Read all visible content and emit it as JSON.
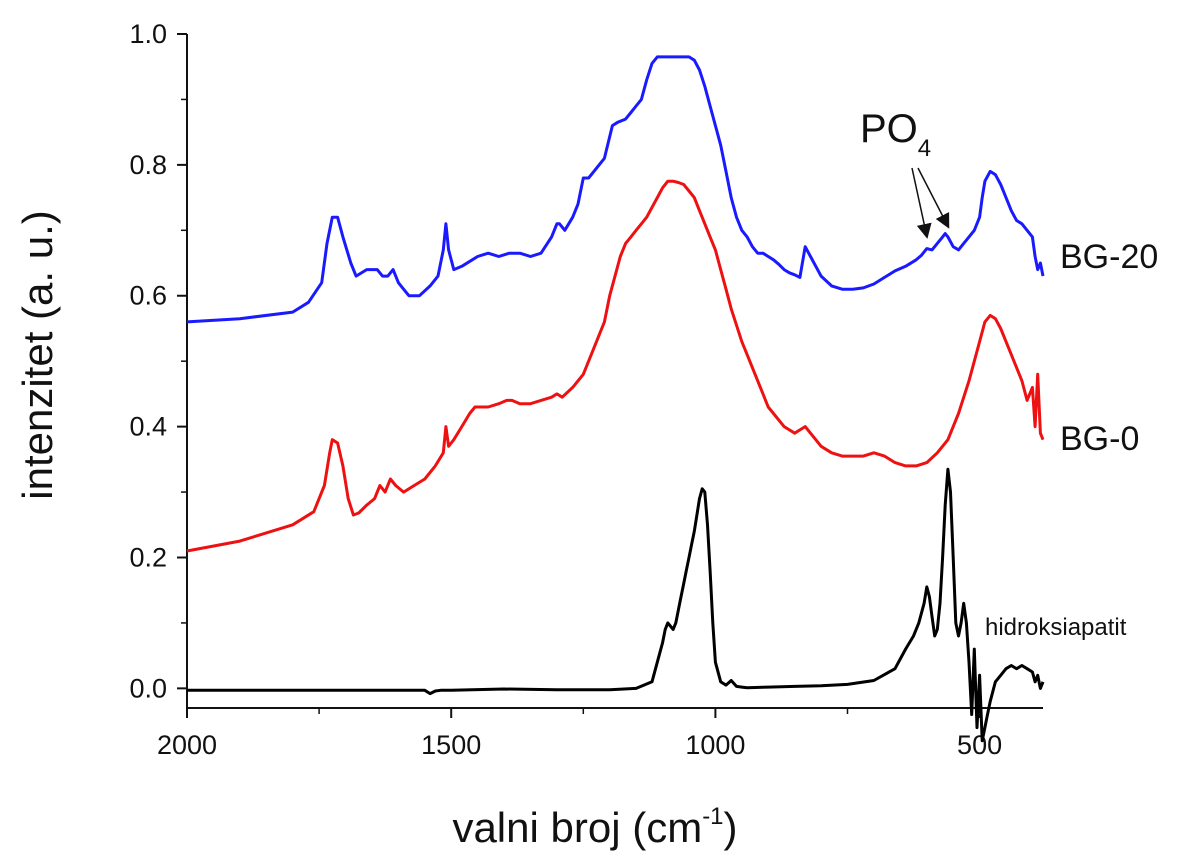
{
  "chart_data": {
    "type": "line",
    "xlabel": "valni broj (cm",
    "xlabel_sup": "-1",
    "xlabel_close": ")",
    "ylabel": "intenzitet (a. u.)",
    "xlim": [
      2000,
      380
    ],
    "ylim": [
      -0.03,
      1.0
    ],
    "x_ticks": [
      2000,
      1500,
      1000,
      500
    ],
    "x_tick_labels": [
      "2000",
      "1500",
      "1000",
      "500"
    ],
    "y_ticks": [
      0.0,
      0.2,
      0.4,
      0.6,
      0.8,
      1.0
    ],
    "y_tick_labels": [
      "0.0",
      "0.2",
      "0.4",
      "0.6",
      "0.8",
      "1.0"
    ],
    "annotation": {
      "text": "PO",
      "sub": "4",
      "arrows_to_x": [
        600,
        560
      ],
      "arrow_target_y": [
        0.67,
        0.685
      ]
    },
    "series": [
      {
        "name": "BG-20",
        "color": "#1a1aff",
        "x": [
          2000,
          1900,
          1800,
          1770,
          1745,
          1735,
          1725,
          1715,
          1705,
          1690,
          1680,
          1660,
          1640,
          1630,
          1620,
          1610,
          1600,
          1590,
          1580,
          1560,
          1540,
          1525,
          1515,
          1510,
          1505,
          1495,
          1480,
          1460,
          1450,
          1430,
          1410,
          1390,
          1370,
          1350,
          1330,
          1310,
          1300,
          1295,
          1285,
          1270,
          1260,
          1250,
          1240,
          1230,
          1210,
          1195,
          1185,
          1170,
          1160,
          1150,
          1140,
          1130,
          1120,
          1110,
          1100,
          1090,
          1080,
          1070,
          1060,
          1050,
          1040,
          1030,
          1020,
          1010,
          1000,
          990,
          980,
          970,
          960,
          950,
          940,
          930,
          920,
          910,
          900,
          890,
          880,
          870,
          860,
          850,
          840,
          830,
          820,
          810,
          800,
          780,
          760,
          740,
          720,
          700,
          680,
          660,
          640,
          620,
          610,
          600,
          590,
          580,
          570,
          565,
          560,
          550,
          540,
          530,
          520,
          510,
          500,
          495,
          490,
          480,
          470,
          460,
          450,
          440,
          430,
          420,
          410,
          400,
          395,
          390,
          385,
          380
        ],
        "y": [
          0.56,
          0.565,
          0.575,
          0.59,
          0.62,
          0.68,
          0.72,
          0.72,
          0.69,
          0.65,
          0.63,
          0.64,
          0.64,
          0.63,
          0.63,
          0.64,
          0.62,
          0.61,
          0.6,
          0.6,
          0.615,
          0.63,
          0.67,
          0.71,
          0.67,
          0.64,
          0.645,
          0.655,
          0.66,
          0.665,
          0.66,
          0.665,
          0.665,
          0.66,
          0.665,
          0.69,
          0.71,
          0.71,
          0.7,
          0.72,
          0.74,
          0.78,
          0.78,
          0.79,
          0.81,
          0.86,
          0.865,
          0.87,
          0.88,
          0.89,
          0.9,
          0.93,
          0.955,
          0.965,
          0.965,
          0.965,
          0.965,
          0.965,
          0.965,
          0.965,
          0.96,
          0.945,
          0.92,
          0.89,
          0.86,
          0.83,
          0.79,
          0.75,
          0.72,
          0.7,
          0.69,
          0.675,
          0.665,
          0.665,
          0.66,
          0.655,
          0.648,
          0.64,
          0.635,
          0.632,
          0.628,
          0.675,
          0.66,
          0.645,
          0.63,
          0.615,
          0.61,
          0.61,
          0.612,
          0.618,
          0.628,
          0.638,
          0.645,
          0.655,
          0.662,
          0.672,
          0.67,
          0.68,
          0.69,
          0.695,
          0.69,
          0.675,
          0.67,
          0.68,
          0.69,
          0.7,
          0.72,
          0.75,
          0.775,
          0.79,
          0.785,
          0.77,
          0.75,
          0.73,
          0.715,
          0.71,
          0.7,
          0.69,
          0.66,
          0.64,
          0.65,
          0.63
        ]
      },
      {
        "name": "BG-0",
        "color": "#ee1111",
        "x": [
          2000,
          1900,
          1800,
          1760,
          1740,
          1730,
          1725,
          1715,
          1705,
          1695,
          1685,
          1675,
          1660,
          1645,
          1635,
          1625,
          1615,
          1605,
          1590,
          1570,
          1550,
          1530,
          1515,
          1510,
          1505,
          1495,
          1480,
          1465,
          1455,
          1445,
          1430,
          1410,
          1395,
          1385,
          1370,
          1350,
          1330,
          1310,
          1300,
          1290,
          1270,
          1250,
          1230,
          1210,
          1200,
          1190,
          1180,
          1170,
          1160,
          1150,
          1140,
          1130,
          1120,
          1110,
          1100,
          1090,
          1080,
          1070,
          1060,
          1050,
          1040,
          1030,
          1020,
          1010,
          1000,
          990,
          980,
          970,
          960,
          950,
          940,
          930,
          920,
          910,
          900,
          890,
          880,
          870,
          860,
          850,
          840,
          830,
          820,
          810,
          800,
          780,
          760,
          740,
          720,
          700,
          680,
          660,
          640,
          620,
          600,
          580,
          560,
          540,
          520,
          500,
          490,
          480,
          470,
          460,
          450,
          440,
          430,
          420,
          410,
          400,
          395,
          390,
          385,
          380
        ],
        "y": [
          0.21,
          0.225,
          0.25,
          0.27,
          0.31,
          0.36,
          0.38,
          0.375,
          0.34,
          0.29,
          0.265,
          0.268,
          0.28,
          0.29,
          0.31,
          0.3,
          0.32,
          0.31,
          0.3,
          0.31,
          0.32,
          0.34,
          0.36,
          0.4,
          0.37,
          0.38,
          0.4,
          0.42,
          0.43,
          0.43,
          0.43,
          0.435,
          0.44,
          0.44,
          0.435,
          0.435,
          0.44,
          0.445,
          0.45,
          0.445,
          0.46,
          0.48,
          0.52,
          0.56,
          0.6,
          0.63,
          0.66,
          0.68,
          0.69,
          0.7,
          0.71,
          0.72,
          0.735,
          0.75,
          0.765,
          0.775,
          0.775,
          0.773,
          0.77,
          0.76,
          0.75,
          0.73,
          0.71,
          0.69,
          0.67,
          0.64,
          0.61,
          0.58,
          0.555,
          0.53,
          0.51,
          0.49,
          0.47,
          0.45,
          0.43,
          0.42,
          0.41,
          0.4,
          0.395,
          0.39,
          0.395,
          0.4,
          0.39,
          0.38,
          0.37,
          0.36,
          0.355,
          0.355,
          0.355,
          0.36,
          0.355,
          0.345,
          0.34,
          0.34,
          0.345,
          0.36,
          0.38,
          0.42,
          0.47,
          0.53,
          0.56,
          0.57,
          0.565,
          0.55,
          0.53,
          0.51,
          0.49,
          0.47,
          0.44,
          0.46,
          0.4,
          0.48,
          0.39,
          0.38
        ]
      },
      {
        "name": "hidroksiapatit",
        "color": "#000000",
        "x": [
          2000,
          1900,
          1800,
          1700,
          1600,
          1550,
          1540,
          1530,
          1520,
          1500,
          1400,
          1300,
          1200,
          1150,
          1120,
          1110,
          1100,
          1095,
          1090,
          1085,
          1080,
          1075,
          1070,
          1065,
          1060,
          1055,
          1050,
          1045,
          1040,
          1035,
          1030,
          1025,
          1020,
          1015,
          1010,
          1005,
          1000,
          990,
          980,
          970,
          960,
          950,
          940,
          900,
          850,
          800,
          750,
          700,
          660,
          640,
          625,
          615,
          605,
          600,
          595,
          590,
          585,
          580,
          575,
          570,
          565,
          560,
          555,
          550,
          545,
          540,
          535,
          530,
          525,
          520,
          515,
          510,
          505,
          500,
          495,
          490,
          485,
          480,
          470,
          460,
          450,
          440,
          430,
          420,
          410,
          400,
          395,
          390,
          385,
          380
        ],
        "y": [
          -0.003,
          -0.003,
          -0.003,
          -0.003,
          -0.003,
          -0.003,
          -0.008,
          -0.004,
          -0.003,
          -0.003,
          -0.001,
          -0.002,
          -0.002,
          0.0,
          0.01,
          0.04,
          0.07,
          0.09,
          0.1,
          0.095,
          0.09,
          0.1,
          0.12,
          0.14,
          0.16,
          0.18,
          0.2,
          0.22,
          0.24,
          0.265,
          0.29,
          0.305,
          0.3,
          0.25,
          0.18,
          0.1,
          0.04,
          0.01,
          0.005,
          0.012,
          0.003,
          0.002,
          0.001,
          0.002,
          0.003,
          0.004,
          0.006,
          0.012,
          0.03,
          0.06,
          0.08,
          0.1,
          0.13,
          0.155,
          0.14,
          0.11,
          0.08,
          0.09,
          0.13,
          0.2,
          0.28,
          0.335,
          0.3,
          0.2,
          0.1,
          0.08,
          0.1,
          0.13,
          0.1,
          0.04,
          -0.04,
          0.06,
          -0.06,
          0.02,
          -0.08,
          -0.06,
          -0.04,
          -0.02,
          0.01,
          0.02,
          0.03,
          0.035,
          0.03,
          0.035,
          0.03,
          0.025,
          0.01,
          0.02,
          0.0,
          0.01
        ]
      }
    ],
    "series_labels": [
      "BG-20",
      "BG-0",
      "hidroksiapatit"
    ]
  }
}
